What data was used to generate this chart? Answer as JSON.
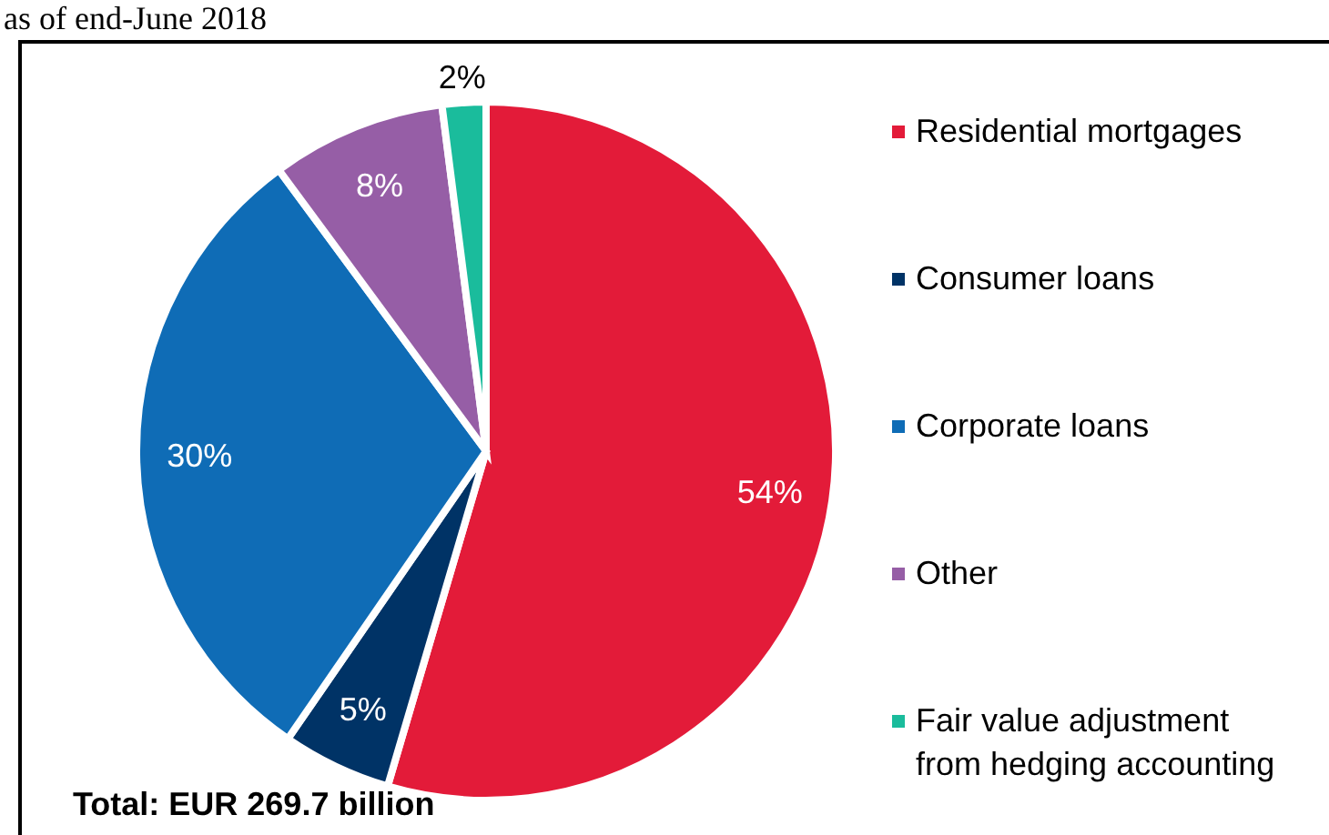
{
  "chart_data": {
    "type": "pie",
    "subtitle": "as of end-June 2018",
    "categories": [
      "Residential mortgages",
      "Consumer loans",
      "Corporate loans",
      "Other",
      "Fair value adjustment from hedging accounting"
    ],
    "values": [
      54,
      5,
      30,
      8,
      2
    ],
    "colors": [
      "#e31b39",
      "#003366",
      "#0f6cb6",
      "#965ea6",
      "#1abc9c"
    ],
    "value_labels": [
      "54%",
      "5%",
      "30%",
      "8%",
      "2%"
    ],
    "legend": "right",
    "annotations": [
      "Total: EUR 269.7 billion"
    ]
  }
}
